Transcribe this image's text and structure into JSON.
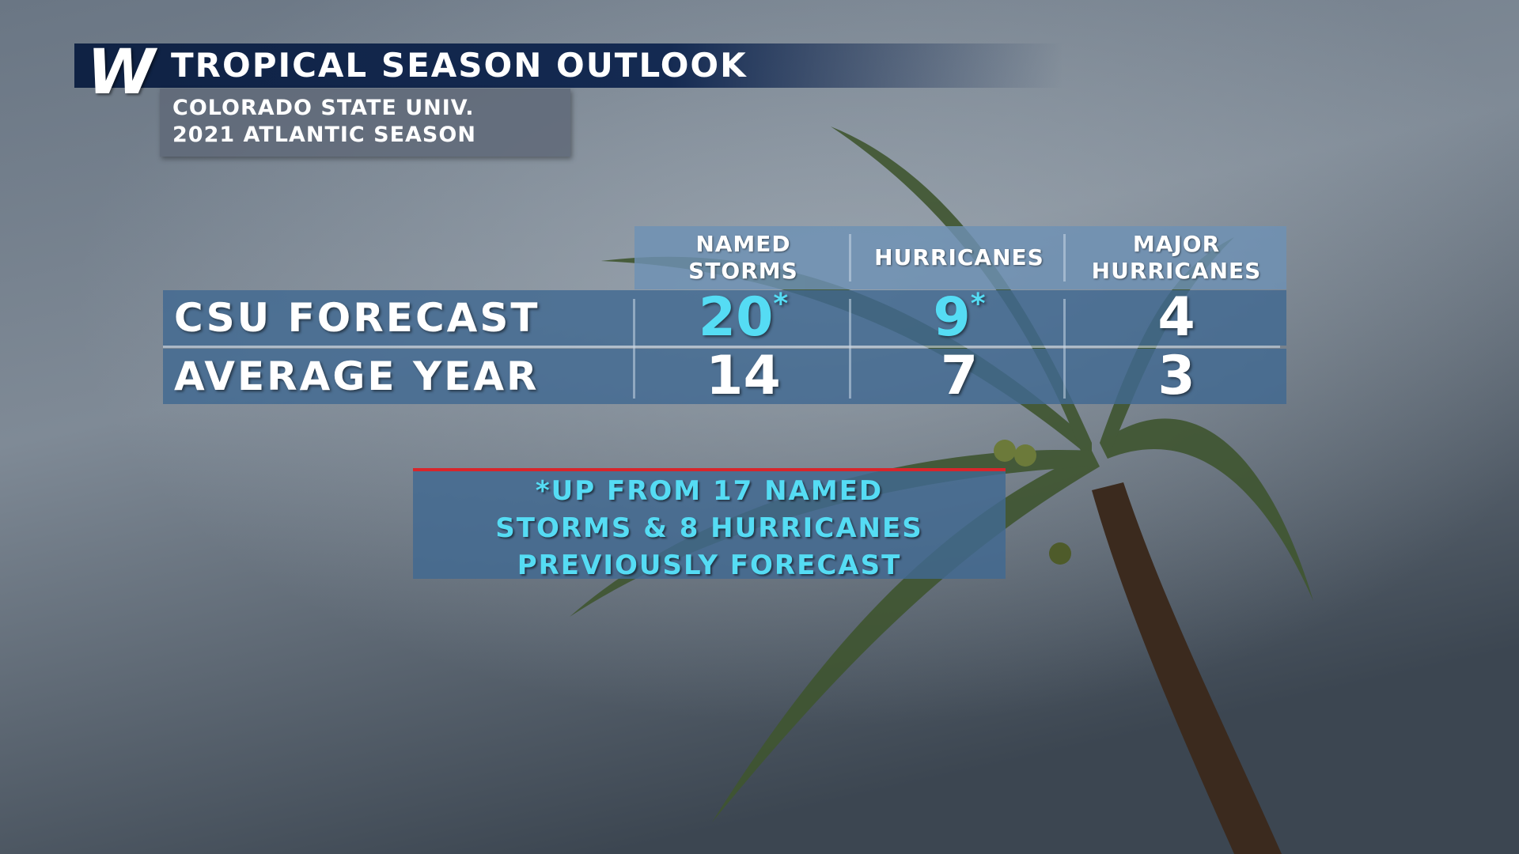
{
  "header": {
    "logo": "W",
    "title": "TROPICAL SEASON OUTLOOK",
    "subtitle": [
      "COLORADO STATE UNIV.",
      "2021 ATLANTIC SEASON"
    ]
  },
  "table": {
    "columns": [
      [
        "NAMED",
        "STORMS"
      ],
      [
        "HURRICANES"
      ],
      [
        "MAJOR",
        "HURRICANES"
      ]
    ],
    "rows": [
      {
        "label": "CSU FORECAST",
        "cells": [
          {
            "text": "20",
            "mark": "*"
          },
          {
            "text": "9",
            "mark": "*"
          },
          {
            "text": "4"
          }
        ]
      },
      {
        "label": "AVERAGE YEAR",
        "cells": [
          {
            "text": "14"
          },
          {
            "text": "7"
          },
          {
            "text": "3"
          }
        ]
      }
    ]
  },
  "note": [
    "*UP FROM 17 NAMED",
    "STORMS & 8 HURRICANES",
    "PREVIOUSLY FORECAST"
  ]
}
